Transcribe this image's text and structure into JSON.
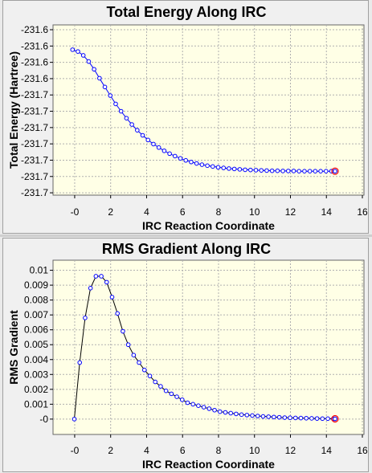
{
  "chart_data": [
    {
      "type": "line",
      "title": "Total Energy Along IRC",
      "xlabel": "IRC Reaction Coordinate",
      "ylabel": "Total Energy (Hartree)",
      "xlim": [
        -0.4,
        16
      ],
      "ylim": [
        -231.7,
        -231.622
      ],
      "grid": true,
      "x_ticks": [
        {
          "v": 0,
          "label": "-0"
        },
        {
          "v": 2,
          "label": "2"
        },
        {
          "v": 4,
          "label": "4"
        },
        {
          "v": 6,
          "label": "6"
        },
        {
          "v": 8,
          "label": "8"
        },
        {
          "v": 10,
          "label": "10"
        },
        {
          "v": 12,
          "label": "12"
        },
        {
          "v": 14,
          "label": "14"
        },
        {
          "v": 16,
          "label": "16"
        }
      ],
      "y_ticks": [
        {
          "v": -231.622,
          "label": "-231.6"
        },
        {
          "v": -231.63,
          "label": "-231.6"
        },
        {
          "v": -231.638,
          "label": "-231.6"
        },
        {
          "v": -231.646,
          "label": "-231.6"
        },
        {
          "v": -231.654,
          "label": "-231.7"
        },
        {
          "v": -231.662,
          "label": "-231.7"
        },
        {
          "v": -231.67,
          "label": "-231.7"
        },
        {
          "v": -231.678,
          "label": "-231.7"
        },
        {
          "v": -231.686,
          "label": "-231.7"
        },
        {
          "v": -231.694,
          "label": "-231.7"
        },
        {
          "v": -231.702,
          "label": "-231.7"
        }
      ],
      "series": [
        {
          "color": "#0000ff",
          "x": [
            -0.12,
            0.18,
            0.48,
            0.78,
            1.08,
            1.38,
            1.68,
            1.98,
            2.28,
            2.58,
            2.88,
            3.18,
            3.48,
            3.78,
            4.08,
            4.38,
            4.68,
            4.98,
            5.28,
            5.58,
            5.88,
            6.18,
            6.48,
            6.78,
            7.08,
            7.38,
            7.68,
            7.98,
            8.28,
            8.58,
            8.88,
            9.18,
            9.48,
            9.78,
            10.08,
            10.38,
            10.68,
            10.98,
            11.28,
            11.58,
            11.88,
            12.18,
            12.48,
            12.78,
            13.08,
            13.38,
            13.68,
            13.98,
            14.28,
            14.48
          ],
          "y": [
            -231.6318,
            -231.6327,
            -231.6346,
            -231.6376,
            -231.6414,
            -231.6458,
            -231.6501,
            -231.6543,
            -231.6584,
            -231.662,
            -231.6654,
            -231.6685,
            -231.6713,
            -231.6738,
            -231.6761,
            -231.6781,
            -231.6798,
            -231.6814,
            -231.6828,
            -231.684,
            -231.6851,
            -231.6861,
            -231.6869,
            -231.6876,
            -231.6882,
            -231.6887,
            -231.6891,
            -231.6895,
            -231.6898,
            -231.6901,
            -231.6903,
            -231.6905,
            -231.6907,
            -231.6908,
            -231.6909,
            -231.691,
            -231.6911,
            -231.6912,
            -231.6912,
            -231.6913,
            -231.6913,
            -231.6913,
            -231.6914,
            -231.6914,
            -231.6914,
            -231.6914,
            -231.6914,
            -231.6914,
            -231.6914,
            -231.6914
          ]
        }
      ],
      "highlight_point": {
        "x": 14.48,
        "y": -231.6914,
        "color": "#ff0000"
      }
    },
    {
      "type": "line",
      "title": "RMS Gradient Along IRC",
      "xlabel": "IRC Reaction Coordinate",
      "ylabel": "RMS Gradient",
      "xlim": [
        -0.4,
        16
      ],
      "ylim": [
        -0.0006,
        0.0103
      ],
      "grid": true,
      "x_ticks": [
        {
          "v": 0,
          "label": "-0"
        },
        {
          "v": 2,
          "label": "2"
        },
        {
          "v": 4,
          "label": "4"
        },
        {
          "v": 6,
          "label": "6"
        },
        {
          "v": 8,
          "label": "8"
        },
        {
          "v": 10,
          "label": "10"
        },
        {
          "v": 12,
          "label": "12"
        },
        {
          "v": 14,
          "label": "14"
        },
        {
          "v": 16,
          "label": "16"
        }
      ],
      "y_ticks": [
        {
          "v": 0,
          "label": "-0"
        },
        {
          "v": 0.001,
          "label": "0.001"
        },
        {
          "v": 0.002,
          "label": "0.002"
        },
        {
          "v": 0.003,
          "label": "0.003"
        },
        {
          "v": 0.004,
          "label": "0.004"
        },
        {
          "v": 0.005,
          "label": "0.005"
        },
        {
          "v": 0.006,
          "label": "0.006"
        },
        {
          "v": 0.007,
          "label": "0.007"
        },
        {
          "v": 0.008,
          "label": "0.008"
        },
        {
          "v": 0.009,
          "label": "0.009"
        },
        {
          "v": 0.01,
          "label": "0.01"
        }
      ],
      "series": [
        {
          "color": "#000000",
          "marker_color": "#0000ff",
          "x": [
            -0.02,
            0.28,
            0.58,
            0.88,
            1.18,
            1.48,
            1.78,
            2.08,
            2.38,
            2.68,
            2.98,
            3.28,
            3.58,
            3.88,
            4.18,
            4.48,
            4.78,
            5.08,
            5.38,
            5.68,
            5.98,
            6.28,
            6.58,
            6.88,
            7.18,
            7.48,
            7.78,
            8.08,
            8.38,
            8.68,
            8.98,
            9.28,
            9.58,
            9.88,
            10.18,
            10.48,
            10.78,
            11.08,
            11.38,
            11.68,
            11.98,
            12.28,
            12.58,
            12.88,
            13.18,
            13.48,
            13.78,
            14.08,
            14.38,
            14.48
          ],
          "y": [
            0.0,
            0.0038,
            0.0068,
            0.0088,
            0.0096,
            0.0096,
            0.0092,
            0.0082,
            0.0071,
            0.0059,
            0.005,
            0.0043,
            0.0038,
            0.0033,
            0.0029,
            0.0025,
            0.0022,
            0.0019,
            0.0017,
            0.0015,
            0.0013,
            0.0011,
            0.001,
            0.0009,
            0.0008,
            0.0007,
            0.0006,
            0.0005,
            0.00045,
            0.0004,
            0.00035,
            0.0003,
            0.00027,
            0.00024,
            0.00021,
            0.00018,
            0.00016,
            0.00014,
            0.00012,
            0.0001,
            9e-05,
            8e-05,
            7e-05,
            6e-05,
            5e-05,
            4e-05,
            3e-05,
            3e-05,
            2e-05,
            2e-05
          ]
        }
      ],
      "highlight_point": {
        "x": 14.48,
        "y": 2e-05,
        "color": "#ff0000"
      }
    }
  ]
}
